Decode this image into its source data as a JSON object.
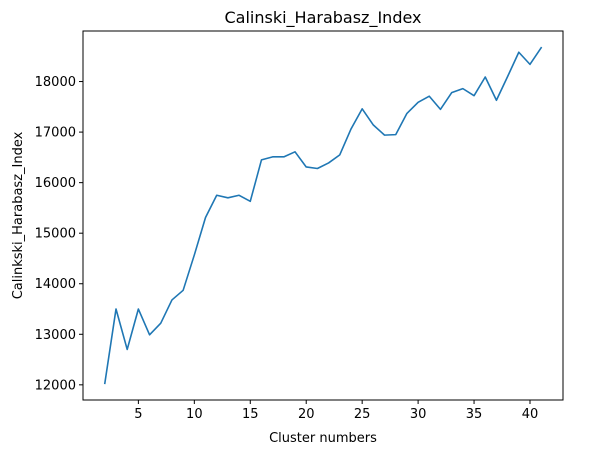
{
  "chart_data": {
    "type": "line",
    "title": "Calinski_Harabasz_Index",
    "xlabel": "Cluster numbers",
    "ylabel": "Calinkski_Harabasz_Index",
    "xlim": [
      0.05,
      42.95
    ],
    "ylim": [
      11700,
      19000
    ],
    "x_ticks": [
      5,
      10,
      15,
      20,
      25,
      30,
      35,
      40
    ],
    "y_ticks": [
      12000,
      13000,
      14000,
      15000,
      16000,
      17000,
      18000
    ],
    "grid": false,
    "series_color": "#1f77b4",
    "series": [
      {
        "x": [
          2,
          3,
          4,
          5,
          6,
          7,
          8,
          9,
          10,
          11,
          12,
          13,
          14,
          15,
          16,
          17,
          18,
          19,
          20,
          21,
          22,
          23,
          24,
          25,
          26,
          27,
          28,
          29,
          30,
          31,
          32,
          33,
          34,
          35,
          36,
          37,
          38,
          39,
          40,
          41
        ],
        "values": [
          12030,
          13500,
          12700,
          13500,
          12990,
          13220,
          13680,
          13870,
          14570,
          15310,
          15750,
          15700,
          15750,
          15630,
          16450,
          16510,
          16510,
          16610,
          16310,
          16280,
          16390,
          16550,
          17060,
          17460,
          17140,
          16940,
          16950,
          17370,
          17590,
          17710,
          17450,
          17780,
          17860,
          17720,
          18090,
          17630,
          18100,
          18580,
          18340,
          18670
        ]
      }
    ]
  }
}
